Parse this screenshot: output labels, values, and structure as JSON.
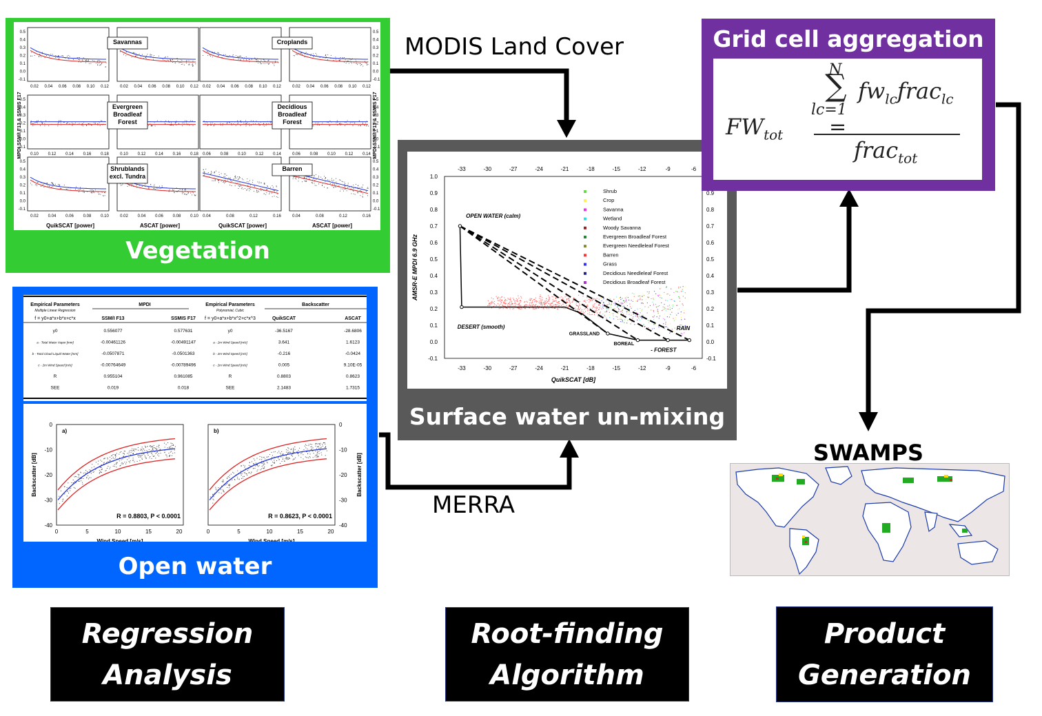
{
  "vegetation": {
    "title": "Vegetation",
    "color": "#33cc33",
    "panels": [
      {
        "label": "Savannas",
        "xticks": [
          "0.02",
          "0.04",
          "0.06",
          "0.08",
          "0.10",
          "0.12"
        ]
      },
      {
        "label": "Croplands",
        "xticks": [
          "0.02",
          "0.04",
          "0.06",
          "0.08",
          "0.10",
          "0.12"
        ]
      },
      {
        "label": "Evergreen\nBroadleaf\nForest",
        "xticks": [
          "0.10",
          "0.12",
          "0.14",
          "0.16",
          "0.18"
        ]
      },
      {
        "label": "Decidious\nBroadleaf\nForest",
        "xticks": [
          "0.06",
          "0.08",
          "0.10",
          "0.12",
          "0.14"
        ]
      },
      {
        "label": "Shrublands\nexcl. Tundra",
        "xticks": [
          "0.02",
          "0.04",
          "0.06",
          "0.08",
          "0.10"
        ]
      },
      {
        "label": "Barren",
        "xticks": [
          "0.04",
          "0.08",
          "0.12",
          "0.16"
        ]
      }
    ],
    "yticks": [
      "0.5",
      "0.4",
      "0.3",
      "0.2",
      "0.1",
      "0.0",
      "-0.1"
    ],
    "ylabel": "MPDI SSM/I F13 & SSMIS F17",
    "xlabels": [
      "QuikSCAT [power]",
      "ASCAT [power]",
      "QuikSCAT [power]",
      "ASCAT [power]"
    ]
  },
  "open_water": {
    "title": "Open water",
    "color": "#0066ff",
    "table": {
      "headers": [
        "Empirical Parameters",
        "MPDI",
        "Empirical Parameters",
        "Backscatter"
      ],
      "subheaders": [
        "Multiple Linear Regression",
        "Polynomial, Cubic"
      ],
      "formula_left": "f = y0+a*x+b*x+c*x",
      "formula_right": "f = y0+a*x+b*x^2+c*x^3",
      "cols": [
        "SSM/I F13",
        "SSMIS F17",
        "QuikSCAT",
        "ASCAT"
      ],
      "rows": [
        [
          "y0",
          "0.556077",
          "0.577631",
          "y0",
          "-36.5167",
          "-28.6806"
        ],
        [
          "a - Total Water Vapor [mm]",
          "-0.00461126",
          "-0.00491147",
          "a - 2m Wind Speed [m/s]",
          "3.641",
          "1.6123"
        ],
        [
          "b - Total Cloud Liquid Water [mm]",
          "-0.0507871",
          "-0.0501363",
          "b - 2m Wind Speed [m/s]",
          "-0.216",
          "-0.0424"
        ],
        [
          "c - 2m Wind Speed [m/s]",
          "-0.00764649",
          "-0.00789496",
          "c - 2m Wind Speed [m/s]",
          "0.005",
          "9.10E-05"
        ],
        [
          "R",
          "0.955104",
          "0.961085",
          "R",
          "0.8803",
          "0.8623"
        ],
        [
          "SEE",
          "0.019",
          "0.018",
          "SEE",
          "2.1483",
          "1.7315"
        ]
      ]
    },
    "plots": [
      {
        "tag": "a)",
        "stat": "R = 0.8803, P < 0.0001"
      },
      {
        "tag": "b)",
        "stat": "R = 0.8623, P < 0.0001"
      }
    ],
    "yticks": [
      "0",
      "-10",
      "-20",
      "-30",
      "-40"
    ],
    "xticks": [
      "0",
      "5",
      "10",
      "15",
      "20"
    ],
    "ylabel": "Backscatter [dB]",
    "xlabel": "Wind Speed [m/s]"
  },
  "unmixing": {
    "title": "Surface water un-mixing",
    "color": "#595959",
    "ylabel": "AMSR-E MPDI 6.9 GHz",
    "xlabel": "QuikSCAT [dB]",
    "xticks": [
      "-33",
      "-30",
      "-27",
      "-24",
      "-21",
      "-18",
      "-15",
      "-12",
      "-9",
      "-6"
    ],
    "yticks": [
      "1.0",
      "0.9",
      "0.8",
      "0.7",
      "0.6",
      "0.5",
      "0.4",
      "0.3",
      "0.2",
      "0.1",
      "0.0",
      "-0.1"
    ],
    "ryticks": [
      "0.9",
      "0.8",
      "0.7",
      "0.6",
      "0.5",
      "0.4",
      "0.3",
      "0.2",
      "0.1",
      "0.0",
      "-0.1"
    ],
    "legend": [
      {
        "name": "Shrub",
        "color": "#66dd44"
      },
      {
        "name": "Crop",
        "color": "#ffee55"
      },
      {
        "name": "Savanna",
        "color": "#ee33ee"
      },
      {
        "name": "Wetland",
        "color": "#33dddd"
      },
      {
        "name": "Woody Savanna",
        "color": "#992222"
      },
      {
        "name": "Evergreen Broadleaf Forest",
        "color": "#228833"
      },
      {
        "name": "Evergreen Needleleaf Forest",
        "color": "#888833"
      },
      {
        "name": "Barren",
        "color": "#ff3333"
      },
      {
        "name": "Grass",
        "color": "#3333ee"
      },
      {
        "name": "Decidious Needleleaf Forest",
        "color": "#222288"
      },
      {
        "name": "Decidious Broadleaf Forest",
        "color": "#aa33cc"
      }
    ],
    "annotations": {
      "open_water": "OPEN WATER (calm)",
      "desert": "DESERT (smooth)",
      "grassland": "GRASSLAND",
      "boreal": "BOREAL",
      "forest": "- FOREST",
      "rain": "RAIN"
    }
  },
  "aggregation": {
    "title": "Grid cell aggregation",
    "color": "#7030a0",
    "lhs": "FW",
    "lhs_sub": "tot",
    "sum_top": "N",
    "sum_bottom": "lc=1",
    "num_a": "fw",
    "num_a_sub": "lc",
    "num_b": "frac",
    "num_b_sub": "lc",
    "den": "frac",
    "den_sub": "tot"
  },
  "swamps": {
    "title": "SWAMPS"
  },
  "flows": {
    "modis": "MODIS Land Cover",
    "merra": "MERRA"
  },
  "steps": [
    {
      "line1": "Regression",
      "line2": "Analysis"
    },
    {
      "line1": "Root-finding",
      "line2": "Algorithm"
    },
    {
      "line1": "Product",
      "line2": "Generation"
    }
  ]
}
